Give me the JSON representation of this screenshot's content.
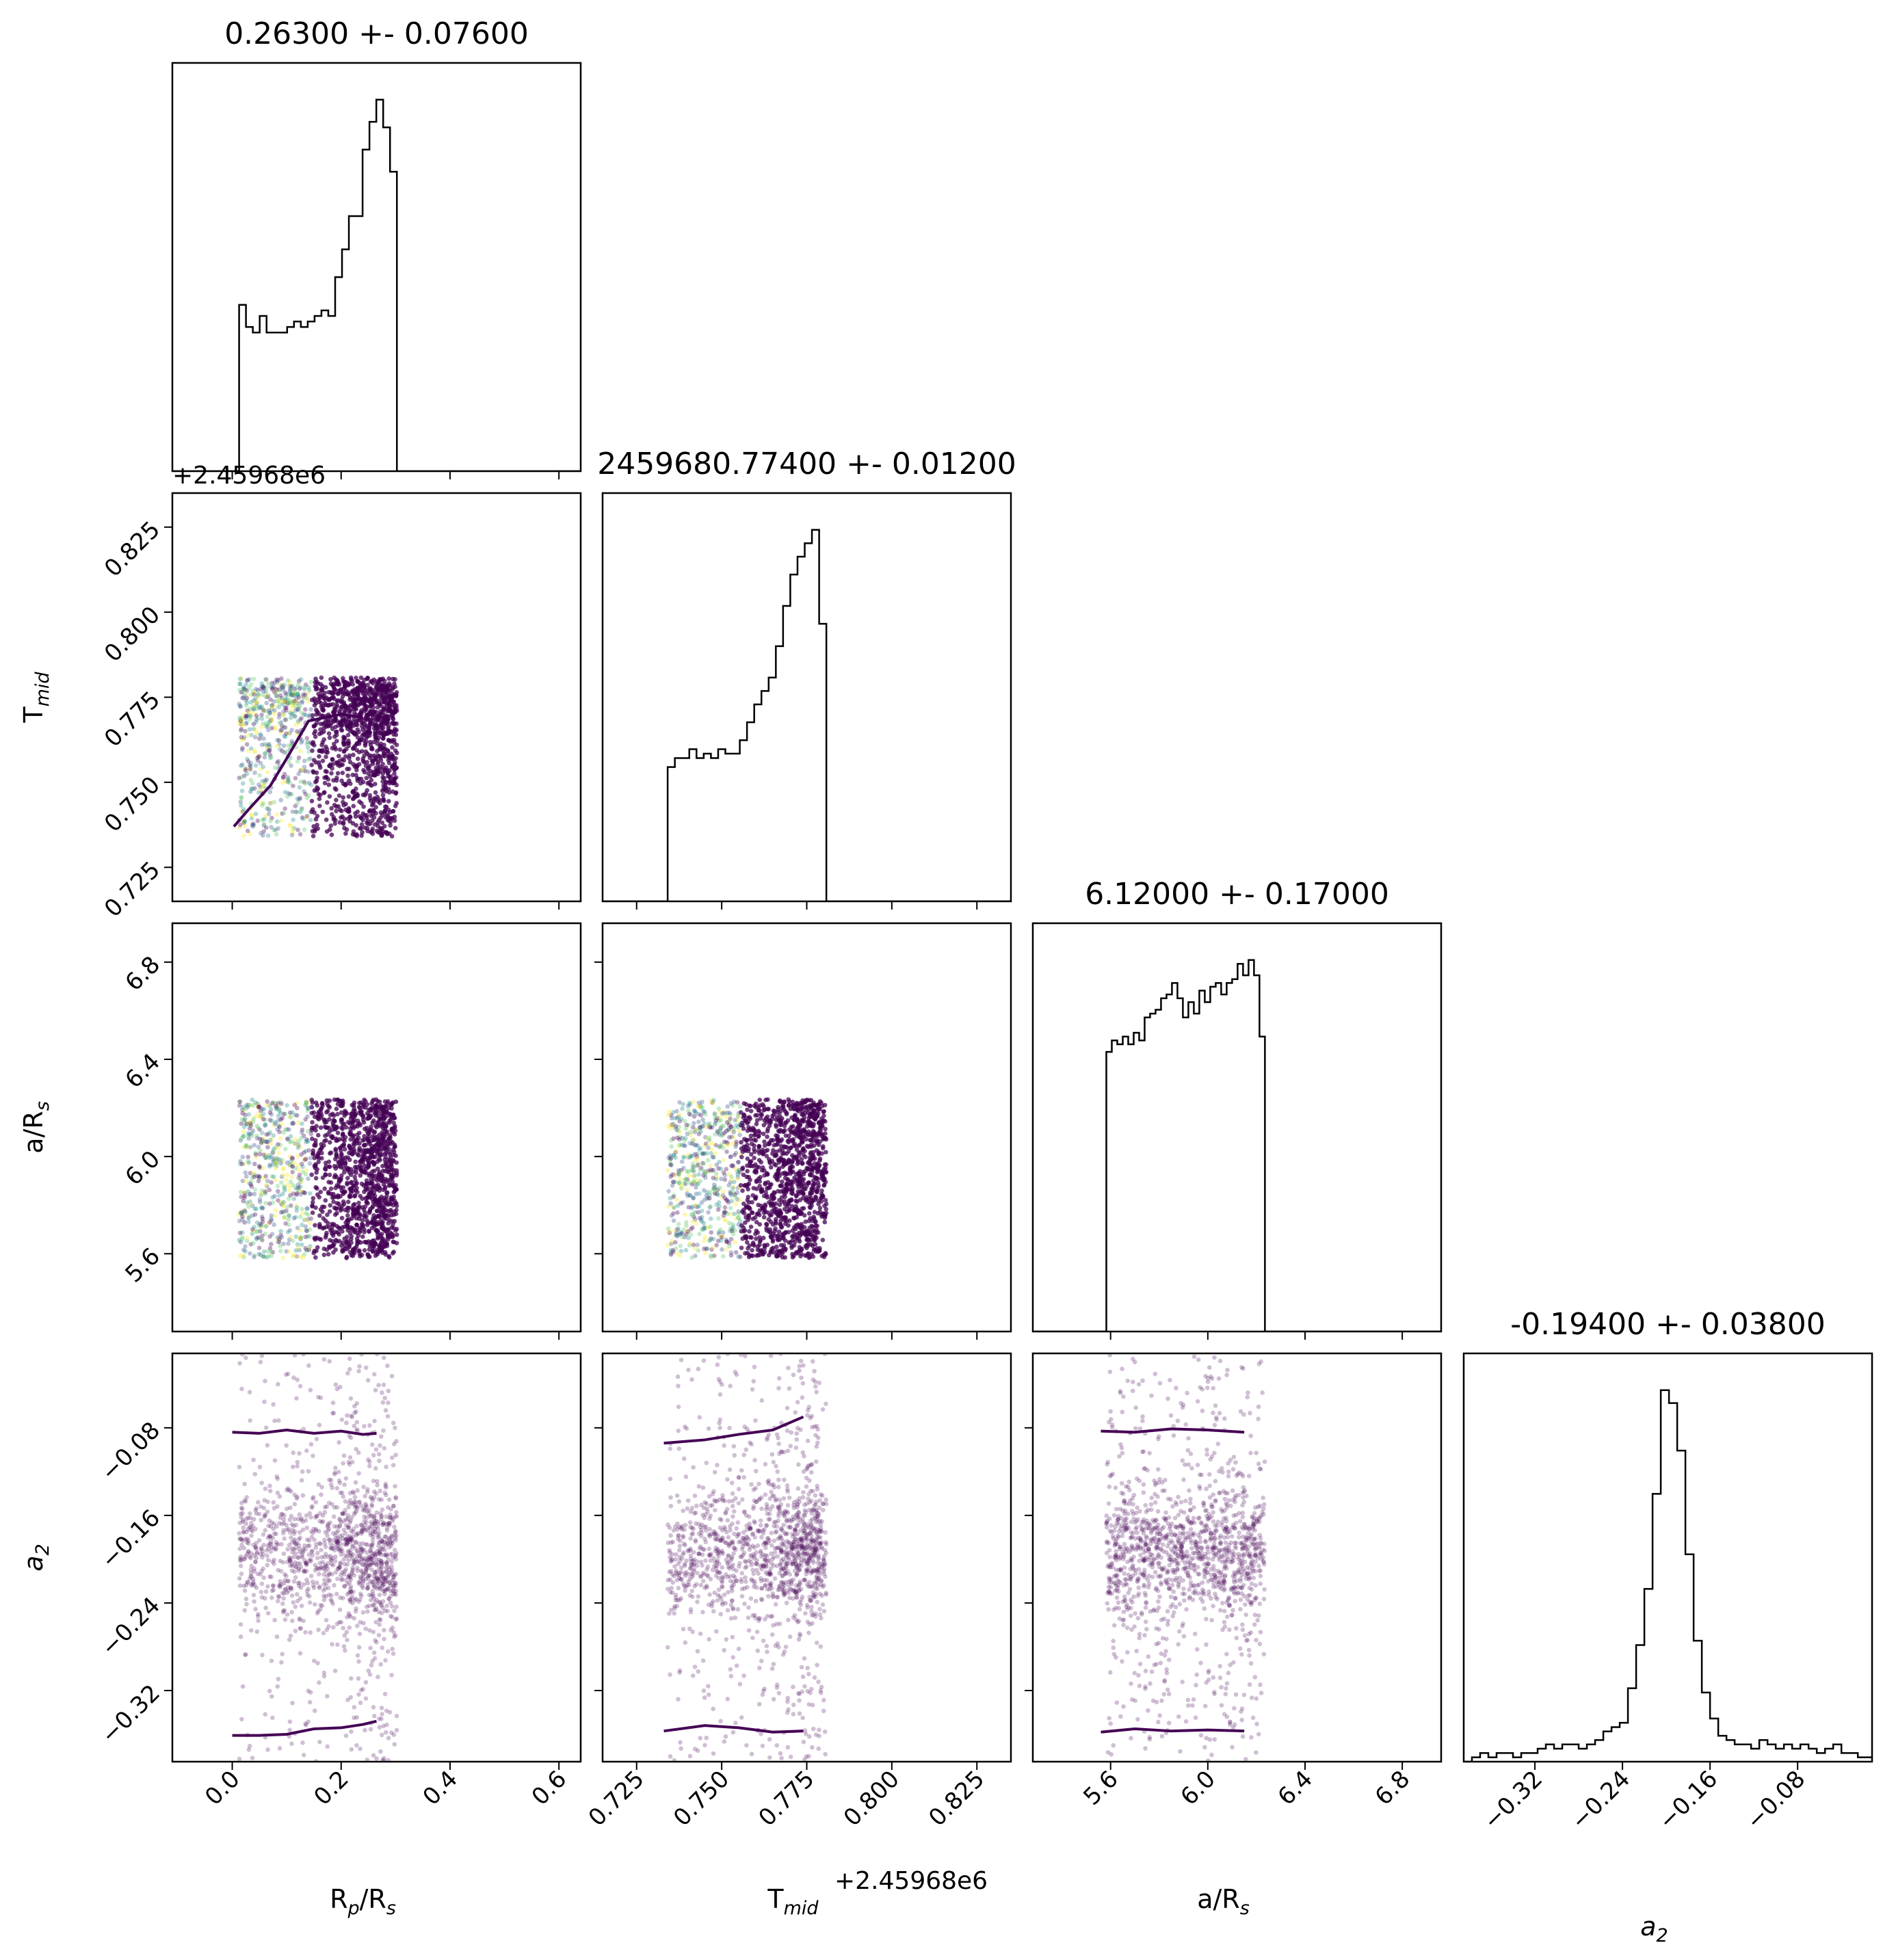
{
  "figure": {
    "kind": "corner-plot",
    "colors": {
      "hist_line": "#000000",
      "contour": "#440154",
      "scatter_cmap": [
        "#440154",
        "#3b528b",
        "#21908d",
        "#5dc963",
        "#fde725"
      ],
      "frame": "#000000"
    }
  },
  "chart_data": {
    "type": "corner",
    "parameters": [
      {
        "key": "rp",
        "label_main": "R",
        "label_sub1": "p",
        "label_mid": "/R",
        "label_sub2": "s",
        "title": "0.26300 +- 0.07600",
        "range": [
          -0.11,
          0.64
        ],
        "ticks": [
          0.0,
          0.2,
          0.4,
          0.6
        ],
        "tick_labels": [
          "0.0",
          "0.2",
          "0.4",
          "0.6"
        ],
        "hist": {
          "edges_start": -0.0,
          "bin_width": 0.0126,
          "values": [
            0.0,
            0.3,
            0.26,
            0.25,
            0.28,
            0.25,
            0.25,
            0.25,
            0.26,
            0.27,
            0.26,
            0.27,
            0.28,
            0.29,
            0.28,
            0.35,
            0.4,
            0.46,
            0.46,
            0.58,
            0.63,
            0.67,
            0.62,
            0.54,
            0.0
          ]
        },
        "sample_range": [
          0.0,
          0.265
        ]
      },
      {
        "key": "tmid",
        "label_main": "T",
        "label_sub1": "mid",
        "offset_label": "+2.45968e6",
        "title": "2459680.77400 +- 0.01200",
        "range": [
          0.715,
          0.835
        ],
        "ticks": [
          0.725,
          0.75,
          0.775,
          0.8,
          0.825
        ],
        "tick_labels": [
          "0.725",
          "0.750",
          "0.775",
          "0.800",
          "0.825"
        ],
        "hist": {
          "edges_start": 0.732,
          "bin_width": 0.00212,
          "values": [
            0.0,
            0.3,
            0.32,
            0.32,
            0.34,
            0.32,
            0.33,
            0.32,
            0.34,
            0.33,
            0.33,
            0.36,
            0.4,
            0.44,
            0.47,
            0.5,
            0.57,
            0.66,
            0.73,
            0.77,
            0.8,
            0.83,
            0.62,
            0.0
          ]
        },
        "sample_range": [
          0.733,
          0.774
        ]
      },
      {
        "key": "ars",
        "label_main": "a/R",
        "label_sub1": "s",
        "title": "6.12000 +- 0.17000",
        "range": [
          5.28,
          6.96
        ],
        "ticks": [
          5.6,
          6.0,
          6.4,
          6.8
        ],
        "tick_labels": [
          "5.6",
          "6.0",
          "6.4",
          "6.8"
        ],
        "hist": {
          "edges_start": 5.56,
          "bin_width": 0.0225,
          "values": [
            0.0,
            0.73,
            0.76,
            0.75,
            0.77,
            0.75,
            0.78,
            0.76,
            0.82,
            0.83,
            0.84,
            0.87,
            0.88,
            0.91,
            0.87,
            0.82,
            0.86,
            0.83,
            0.89,
            0.86,
            0.9,
            0.91,
            0.88,
            0.91,
            0.92,
            0.96,
            0.93,
            0.97,
            0.93,
            0.77,
            0.0
          ]
        },
        "sample_range": [
          5.56,
          6.15
        ]
      },
      {
        "key": "a2",
        "label_main": "a",
        "label_sub1": "2",
        "title": "-0.19400 +- 0.03800",
        "range": [
          -0.385,
          -0.012
        ],
        "ticks": [
          -0.32,
          -0.24,
          -0.16,
          -0.08
        ],
        "tick_labels": [
          "−0.32",
          "−0.24",
          "−0.16",
          "−0.08"
        ],
        "hist": {
          "edges_start": -0.385,
          "bin_width": 0.0075,
          "values": [
            0.0,
            0.01,
            0.02,
            0.01,
            0.02,
            0.02,
            0.01,
            0.02,
            0.02,
            0.03,
            0.04,
            0.03,
            0.04,
            0.04,
            0.03,
            0.04,
            0.05,
            0.07,
            0.08,
            0.09,
            0.17,
            0.27,
            0.4,
            0.62,
            0.86,
            0.83,
            0.72,
            0.48,
            0.28,
            0.16,
            0.1,
            0.06,
            0.05,
            0.04,
            0.04,
            0.03,
            0.05,
            0.04,
            0.03,
            0.04,
            0.03,
            0.04,
            0.03,
            0.02,
            0.03,
            0.04,
            0.02,
            0.02,
            0.01,
            0.01
          ]
        },
        "sample_range": [
          -0.385,
          -0.012
        ]
      }
    ],
    "contours": {
      "rp_tmid": [
        [
          0.003,
          0.737
        ],
        [
          0.03,
          0.742
        ],
        [
          0.07,
          0.749
        ],
        [
          0.1,
          0.757
        ],
        [
          0.14,
          0.768
        ],
        [
          0.2,
          0.77
        ],
        [
          0.24,
          0.769
        ]
      ],
      "rp_a2": {
        "upper": [
          [
            0.0,
            -0.084
          ],
          [
            0.05,
            -0.085
          ],
          [
            0.1,
            -0.082
          ],
          [
            0.15,
            -0.085
          ],
          [
            0.2,
            -0.083
          ],
          [
            0.24,
            -0.086
          ],
          [
            0.265,
            -0.085
          ]
        ],
        "lower": [
          [
            0.0,
            -0.361
          ],
          [
            0.05,
            -0.361
          ],
          [
            0.1,
            -0.36
          ],
          [
            0.15,
            -0.355
          ],
          [
            0.2,
            -0.354
          ],
          [
            0.24,
            -0.351
          ],
          [
            0.265,
            -0.348
          ]
        ]
      },
      "tmid_a2": {
        "upper": [
          [
            0.733,
            -0.094
          ],
          [
            0.745,
            -0.091
          ],
          [
            0.755,
            -0.086
          ],
          [
            0.765,
            -0.082
          ],
          [
            0.774,
            -0.07
          ]
        ],
        "lower": [
          [
            0.733,
            -0.357
          ],
          [
            0.745,
            -0.352
          ],
          [
            0.755,
            -0.354
          ],
          [
            0.765,
            -0.358
          ],
          [
            0.774,
            -0.357
          ]
        ]
      },
      "ars_a2": {
        "upper": [
          [
            5.56,
            -0.083
          ],
          [
            5.7,
            -0.084
          ],
          [
            5.85,
            -0.081
          ],
          [
            6.0,
            -0.082
          ],
          [
            6.15,
            -0.084
          ]
        ],
        "lower": [
          [
            5.56,
            -0.358
          ],
          [
            5.7,
            -0.355
          ],
          [
            5.85,
            -0.357
          ],
          [
            6.0,
            -0.356
          ],
          [
            6.15,
            -0.357
          ]
        ]
      }
    }
  }
}
